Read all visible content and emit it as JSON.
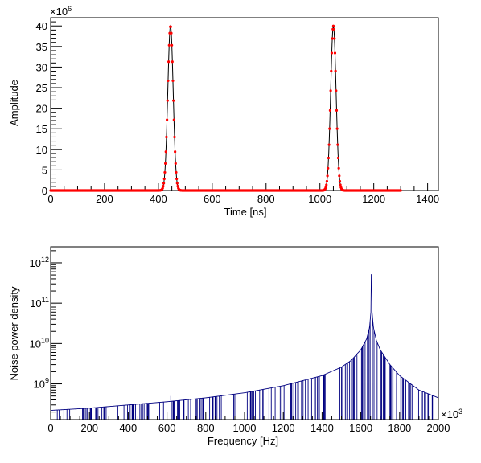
{
  "colors": {
    "pulse_marker": "#ff0000",
    "pulse_curve": "#000000",
    "spectrum_line": "#000080",
    "axis": "#000000"
  },
  "chart_data": [
    {
      "type": "scatter",
      "xlabel": "Time [ns]",
      "ylabel": "Amplitude",
      "y_exponent_label": "×10",
      "y_exponent_power": "6",
      "xlim": [
        0,
        1440
      ],
      "ylim": [
        0,
        42
      ],
      "x_ticks": [
        0,
        200,
        400,
        600,
        800,
        1000,
        1200,
        1400
      ],
      "y_ticks": [
        0,
        5,
        10,
        15,
        20,
        25,
        30,
        35,
        40
      ],
      "data_x_range": [
        0,
        1300
      ],
      "pulses": [
        {
          "center": 445,
          "peak": 40,
          "sigma": 10
        },
        {
          "center": 1050,
          "peak": 40,
          "sigma": 10
        }
      ],
      "marker": "red dots",
      "fit_line": "black",
      "grid": false
    },
    {
      "type": "line",
      "scale_y": "log",
      "xlabel": "Frequency [Hz]",
      "ylabel": "Noise power density",
      "x_exponent_label": "×10",
      "x_exponent_power": "3",
      "xlim": [
        0,
        2000
      ],
      "ylim": [
        130000000.0,
        2500000000000.0
      ],
      "x_ticks": [
        0,
        200,
        400,
        600,
        800,
        1000,
        1200,
        1400,
        1600,
        1800,
        2000
      ],
      "y_ticks": [
        {
          "value": 1000000000.0,
          "label": "10",
          "power": "9"
        },
        {
          "value": 10000000000.0,
          "label": "10",
          "power": "10"
        },
        {
          "value": 100000000000.0,
          "label": "10",
          "power": "11"
        },
        {
          "value": 1000000000000.0,
          "label": "10",
          "power": "12"
        }
      ],
      "envelope": [
        [
          0,
          220000000.0
        ],
        [
          200,
          250000000.0
        ],
        [
          400,
          300000000.0
        ],
        [
          600,
          360000000.0
        ],
        [
          800,
          450000000.0
        ],
        [
          1000,
          600000000.0
        ],
        [
          1200,
          900000000.0
        ],
        [
          1400,
          1600000000.0
        ],
        [
          1500,
          2600000000.0
        ],
        [
          1550,
          3800000000.0
        ],
        [
          1600,
          7000000000.0
        ],
        [
          1630,
          13000000000.0
        ],
        [
          1645,
          25000000000.0
        ],
        [
          1652,
          60000000000.0
        ],
        [
          1655,
          1500000000000.0
        ],
        [
          1658,
          60000000000.0
        ],
        [
          1665,
          25000000000.0
        ],
        [
          1680,
          12000000000.0
        ],
        [
          1700,
          7000000000.0
        ],
        [
          1750,
          3000000000.0
        ],
        [
          1800,
          1600000000.0
        ],
        [
          1900,
          700000000.0
        ],
        [
          2000,
          450000000.0
        ]
      ],
      "spikes": [
        {
          "x": 620,
          "y": 500000000.0
        },
        {
          "x": 1045,
          "y": 650000000.0
        },
        {
          "x": 1655,
          "y": 1500000000000.0
        }
      ],
      "grid": false
    }
  ]
}
